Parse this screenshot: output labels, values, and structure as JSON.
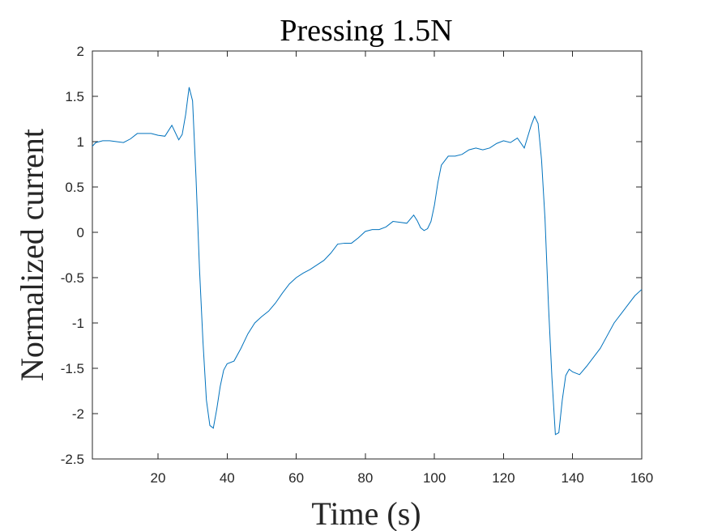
{
  "chart_data": {
    "type": "line",
    "title": "Pressing 1.5N",
    "xlabel": "Time (s)",
    "ylabel": "Normalized current",
    "xlim": [
      1,
      160
    ],
    "ylim": [
      -2.5,
      2
    ],
    "xticks": [
      20,
      40,
      60,
      80,
      100,
      120,
      140,
      160
    ],
    "yticks": [
      2,
      1.5,
      1,
      0.5,
      0,
      -0.5,
      -1,
      -1.5,
      -2,
      -2.5
    ],
    "grid": false,
    "series": [
      {
        "color": "#0072BD",
        "x": [
          1,
          2,
          4,
          6,
          8,
          10,
          12,
          14,
          16,
          18,
          20,
          22,
          24,
          26,
          27,
          28,
          29,
          30,
          31,
          32,
          33,
          34,
          35,
          36,
          37,
          38,
          39,
          40,
          42,
          44,
          46,
          48,
          50,
          52,
          54,
          56,
          58,
          60,
          62,
          64,
          66,
          68,
          70,
          72,
          74,
          76,
          78,
          80,
          82,
          84,
          86,
          88,
          90,
          92,
          94,
          95,
          96,
          97,
          98,
          99,
          100,
          101,
          102,
          104,
          106,
          108,
          110,
          112,
          114,
          116,
          118,
          120,
          122,
          124,
          126,
          128,
          129,
          130,
          131,
          132,
          133,
          134,
          135,
          136,
          137,
          138,
          139,
          140,
          142,
          144,
          146,
          148,
          150,
          152,
          154,
          156,
          158,
          160
        ],
        "y": [
          0.95,
          0.99,
          1.01,
          1.01,
          1.0,
          0.99,
          1.03,
          1.09,
          1.09,
          1.09,
          1.07,
          1.06,
          1.18,
          1.02,
          1.08,
          1.3,
          1.6,
          1.45,
          0.6,
          -0.4,
          -1.2,
          -1.85,
          -2.13,
          -2.16,
          -1.95,
          -1.7,
          -1.52,
          -1.45,
          -1.42,
          -1.28,
          -1.12,
          -1.0,
          -0.93,
          -0.87,
          -0.78,
          -0.67,
          -0.57,
          -0.5,
          -0.45,
          -0.41,
          -0.36,
          -0.31,
          -0.23,
          -0.13,
          -0.12,
          -0.12,
          -0.06,
          0.01,
          0.03,
          0.03,
          0.06,
          0.12,
          0.11,
          0.1,
          0.19,
          0.13,
          0.05,
          0.02,
          0.04,
          0.12,
          0.3,
          0.55,
          0.74,
          0.84,
          0.84,
          0.86,
          0.91,
          0.93,
          0.91,
          0.93,
          0.98,
          1.01,
          0.99,
          1.04,
          0.93,
          1.18,
          1.28,
          1.2,
          0.8,
          0.15,
          -0.8,
          -1.6,
          -2.23,
          -2.21,
          -1.85,
          -1.58,
          -1.51,
          -1.54,
          -1.57,
          -1.48,
          -1.38,
          -1.28,
          -1.14,
          -1.0,
          -0.9,
          -0.8,
          -0.7,
          -0.63
        ]
      }
    ]
  }
}
